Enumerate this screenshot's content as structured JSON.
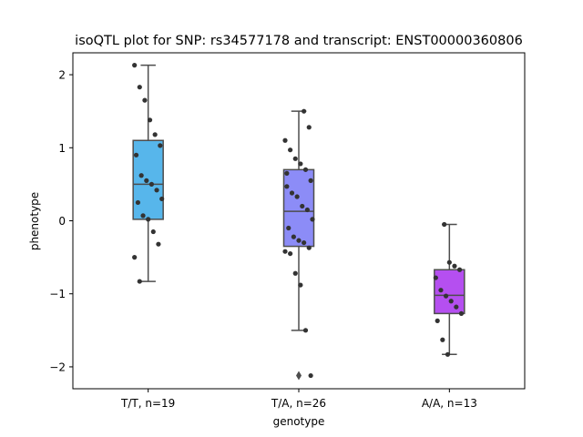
{
  "chart_data": {
    "type": "box",
    "title": "isoQTL plot for SNP: rs34577178 and transcript: ENST00000360806",
    "xlabel": "genotype",
    "ylabel": "phenotype",
    "ylim": [
      -2.3,
      2.3
    ],
    "yticks": [
      2,
      1,
      0,
      -1,
      -2
    ],
    "ytick_labels": [
      "2",
      "1",
      "0",
      "−1",
      "−2"
    ],
    "grid": false,
    "groups": [
      {
        "label": "T/T, n=19",
        "color": "#57b6eb",
        "q1": 0.02,
        "median": 0.5,
        "q3": 1.1,
        "whisker_low": -0.83,
        "whisker_high": 2.13,
        "outliers": [],
        "points": [
          2.13,
          1.83,
          1.65,
          1.38,
          1.18,
          1.03,
          0.9,
          0.62,
          0.55,
          0.5,
          0.42,
          0.3,
          0.25,
          0.07,
          0.02,
          -0.15,
          -0.32,
          -0.5,
          -0.83
        ]
      },
      {
        "label": "T/A, n=26",
        "color": "#8c8cf7",
        "q1": -0.35,
        "median": 0.13,
        "q3": 0.7,
        "whisker_low": -1.5,
        "whisker_high": 1.5,
        "outliers": [
          -2.12
        ],
        "points": [
          1.5,
          1.28,
          1.1,
          0.97,
          0.85,
          0.78,
          0.7,
          0.55,
          0.47,
          0.38,
          0.33,
          0.2,
          0.15,
          0.02,
          -0.1,
          -0.22,
          -0.27,
          -0.3,
          -0.37,
          -0.42,
          -0.45,
          -0.72,
          -0.88,
          -1.5,
          -2.12,
          0.65
        ]
      },
      {
        "label": "A/A, n=13",
        "color": "#b54ff0",
        "q1": -1.27,
        "median": -1.02,
        "q3": -0.67,
        "whisker_low": -1.83,
        "whisker_high": -0.05,
        "outliers": [],
        "points": [
          -0.05,
          -0.57,
          -0.62,
          -0.67,
          -0.78,
          -0.95,
          -1.03,
          -1.1,
          -1.18,
          -1.27,
          -1.37,
          -1.63,
          -1.83
        ]
      }
    ]
  }
}
